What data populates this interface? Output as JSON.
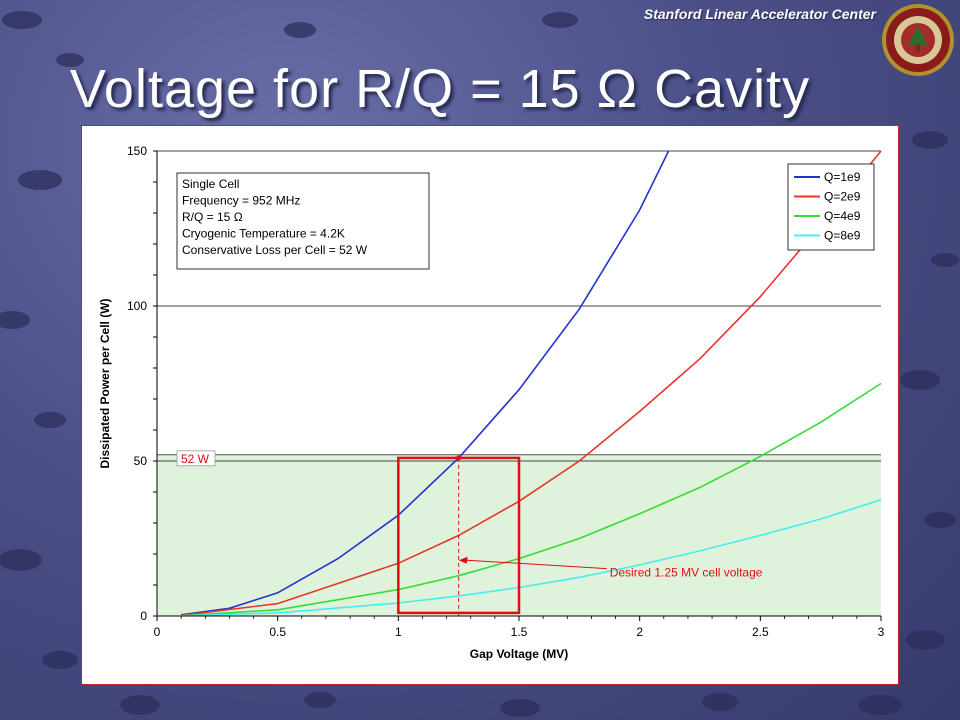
{
  "header": {
    "organization": "Stanford Linear Accelerator Center",
    "slide_title": "Voltage for R/Q = 15 Ω Cavity"
  },
  "colors": {
    "slide_background": "#4c5088",
    "chart_frame_border": "#c0242a",
    "series": [
      "#2233cc",
      "#e8342c",
      "#33dd33",
      "#44eeee"
    ],
    "shaded_region": "#dff3dc",
    "annotation_red": "#e01010"
  },
  "icons": [
    "university-seal-icon"
  ],
  "chart_data": {
    "type": "line",
    "xlabel": "Gap Voltage (MV)",
    "ylabel": "Dissipated Power per Cell (W)",
    "xlim": [
      0,
      3
    ],
    "ylim": [
      0,
      150
    ],
    "x_ticks": [
      "0",
      "0.5",
      "1",
      "1.5",
      "2",
      "2.5",
      "3"
    ],
    "y_ticks": [
      "0",
      "50",
      "100",
      "150"
    ],
    "grid": "horizontal",
    "legend_position": "top-right",
    "series": [
      {
        "name": "Q=1e9",
        "x": [
          0.1,
          0.3,
          0.5,
          0.75,
          1.0,
          1.25,
          1.5,
          1.75,
          2.0,
          2.12
        ],
        "y": [
          0.4,
          2.5,
          7.5,
          18.5,
          32.5,
          51,
          73,
          99,
          131,
          150
        ]
      },
      {
        "name": "Q=2e9",
        "x": [
          0.1,
          0.5,
          1.0,
          1.25,
          1.5,
          1.75,
          2.0,
          2.25,
          2.5,
          2.75,
          3.0
        ],
        "y": [
          0.2,
          4,
          17,
          26,
          37,
          50,
          66,
          83,
          103,
          126,
          150
        ]
      },
      {
        "name": "Q=4e9",
        "x": [
          0.1,
          0.5,
          1.0,
          1.25,
          1.5,
          1.75,
          2.0,
          2.25,
          2.5,
          2.75,
          3.0
        ],
        "y": [
          0.1,
          2,
          8.5,
          13,
          18.5,
          25,
          33,
          41.5,
          51.5,
          62.5,
          75
        ]
      },
      {
        "name": "Q=8e9",
        "x": [
          0.1,
          0.5,
          1.0,
          1.25,
          1.5,
          1.75,
          2.0,
          2.25,
          2.5,
          2.75,
          3.0
        ],
        "y": [
          0.05,
          1,
          4.2,
          6.5,
          9.2,
          12.5,
          16.5,
          21,
          26,
          31.3,
          37.5
        ]
      }
    ],
    "info_box": [
      "Single Cell",
      "Frequency = 952 MHz",
      "R/Q = 15 Ω",
      "Cryogenic Temperature = 4.2K",
      "Conservative Loss per Cell = 52 W"
    ],
    "threshold": {
      "value": 52,
      "label": "52 W"
    },
    "highlight_box": {
      "x_from": 1.0,
      "x_to": 1.5,
      "y_from": 1,
      "y_to": 51
    },
    "marker": {
      "x": 1.25,
      "y": 51
    },
    "annotation": {
      "text": "Desired 1.25 MV cell voltage",
      "x": 1.25,
      "y": 18,
      "text_x": 1.88,
      "text_y": 14
    }
  }
}
